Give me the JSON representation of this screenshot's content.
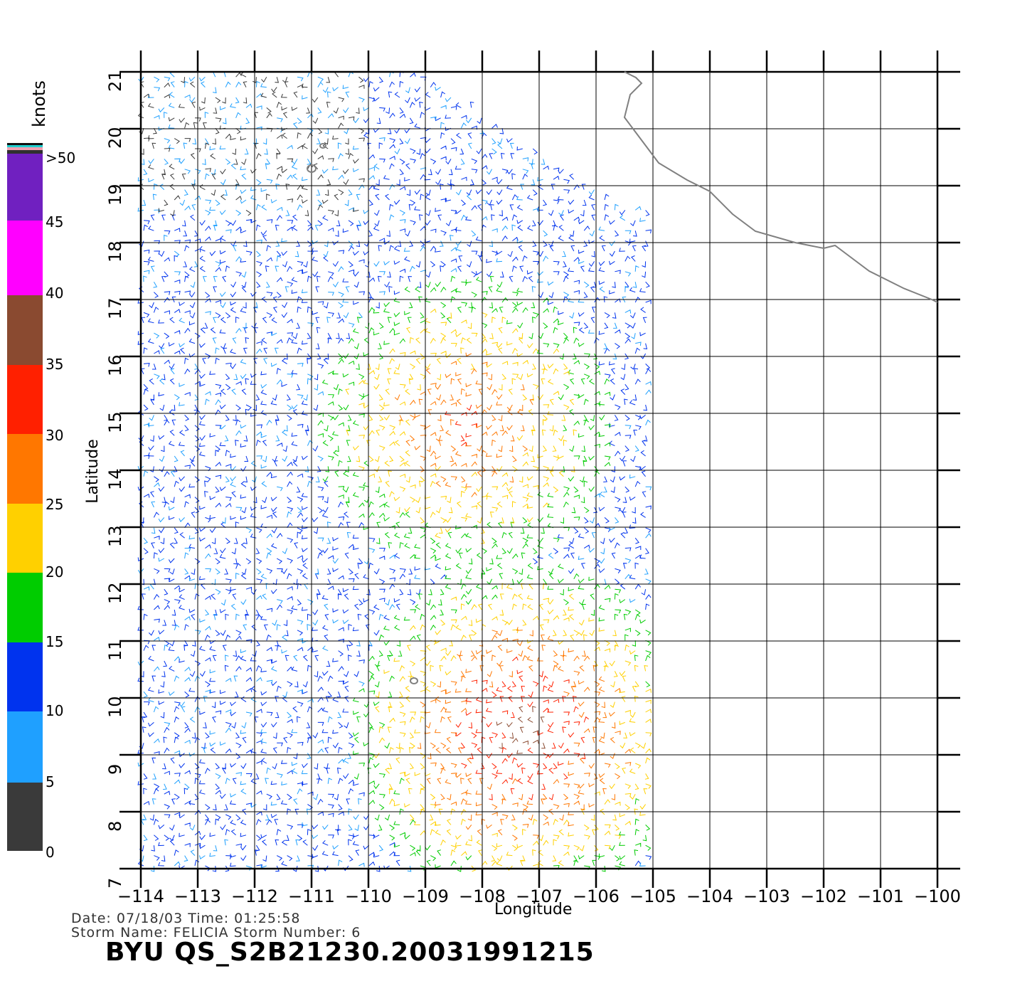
{
  "map": {
    "x_axis_label": "Longitude",
    "y_axis_label": "Latitude",
    "lon_range": [
      -114,
      -100
    ],
    "lat_range": [
      7,
      21
    ],
    "lon_ticks": [
      "-114",
      "-113",
      "-112",
      "-111",
      "-110",
      "-109",
      "-108",
      "-107",
      "-106",
      "-105",
      "-104",
      "-103",
      "-102",
      "-101",
      "-100"
    ],
    "lat_ticks": [
      "7",
      "8",
      "9",
      "10",
      "11",
      "12",
      "13",
      "14",
      "15",
      "16",
      "17",
      "18",
      "19",
      "20",
      "21"
    ],
    "coastline_color": "#808080",
    "grid": true
  },
  "colorbar": {
    "unit_label": "knots",
    "tick_labels": [
      "0",
      "5",
      "10",
      "15",
      "20",
      "25",
      "30",
      "35",
      "40",
      "45",
      ">50"
    ],
    "colors": {
      "0-5": "#3a3a3a",
      "5-10": "#1fa0ff",
      "10-15": "#0033ee",
      "15-20": "#00cc00",
      "20-25": "#ffd000",
      "25-30": "#ff7700",
      "30-35": "#ff2000",
      "35-40": "#8a4a30",
      "40-45": "#ff00ff",
      "45-50": "#7020c0"
    }
  },
  "info": {
    "date_line": "Date:  07/18/03    Time:  01:25:58",
    "storm_line": "Storm  Name:  FELICIA    Storm  Number:  6",
    "title": "BYU  QS_S2B21230.20031991215"
  }
}
